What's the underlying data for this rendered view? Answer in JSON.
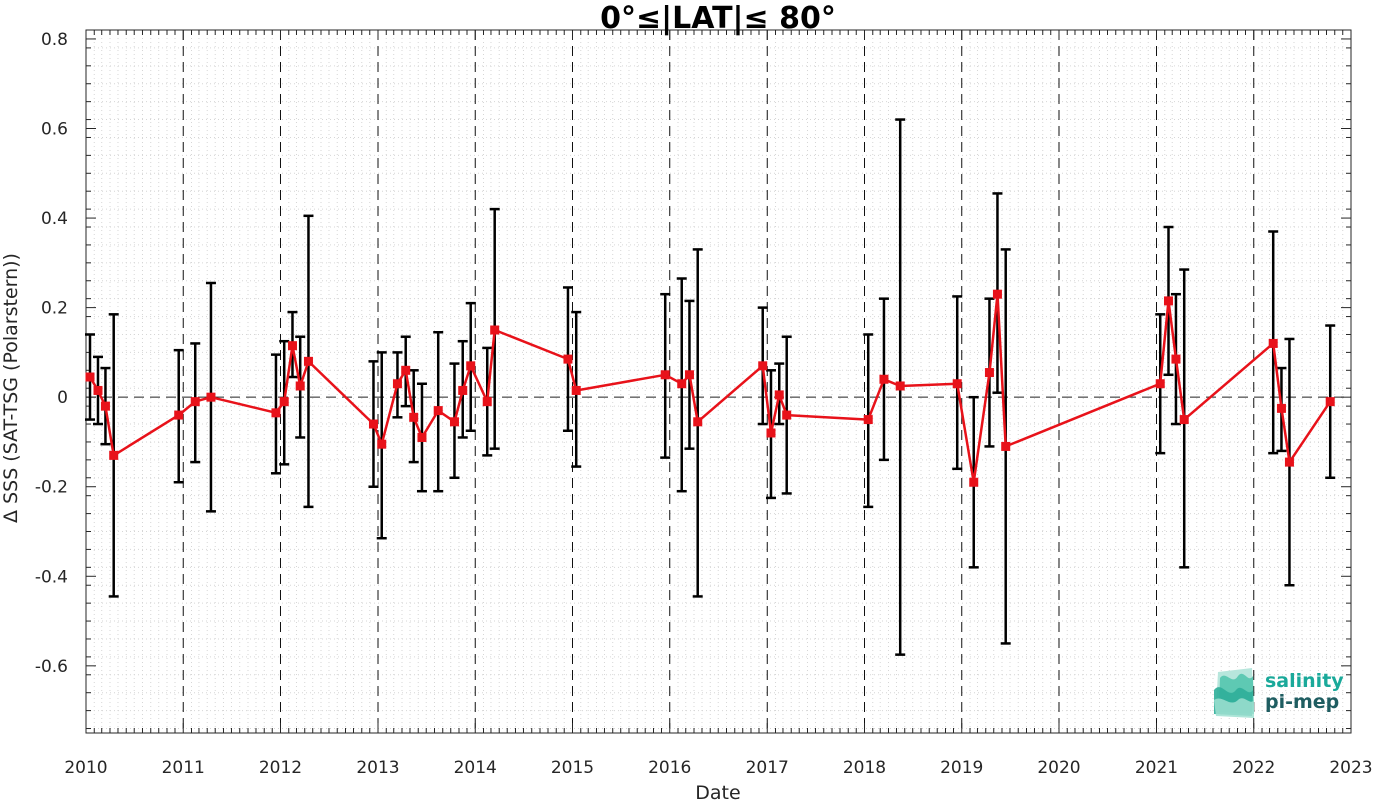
{
  "chart_data": {
    "type": "line",
    "title": "0°≤|LAT|≤ 80°",
    "xlabel": "Date",
    "ylabel": "Δ SSS (SAT-TSG (Polarstern))",
    "xlim": [
      "2010-01-01",
      "2023-01-01"
    ],
    "ylim": [
      -0.75,
      0.82
    ],
    "x_ticks": [
      "2010",
      "2011",
      "2012",
      "2013",
      "2014",
      "2015",
      "2016",
      "2017",
      "2018",
      "2019",
      "2020",
      "2021",
      "2022",
      "2023"
    ],
    "y_ticks": [
      -0.6,
      -0.4,
      -0.2,
      0,
      0.2,
      0.4,
      0.6,
      0.8
    ],
    "y_tick_labels": [
      "-0.6",
      "-0.4",
      "-0.2",
      "0",
      "0.2",
      "0.4",
      "0.6",
      "0.8"
    ],
    "grid": "minor dotted",
    "year_boundary_lines": "dashed vertical",
    "zero_line": "dashed horizontal",
    "series": [
      {
        "color": "#e8121a",
        "marker": "square",
        "errorbar_color": "#000000",
        "points": [
          {
            "x": "2010-01-16",
            "y": 0.045,
            "lo": -0.05,
            "hi": 0.14
          },
          {
            "x": "2010-02-15",
            "y": 0.015,
            "lo": -0.06,
            "hi": 0.09
          },
          {
            "x": "2010-03-15",
            "y": -0.02,
            "lo": -0.105,
            "hi": 0.065
          },
          {
            "x": "2010-04-15",
            "y": -0.13,
            "lo": -0.445,
            "hi": 0.185
          },
          {
            "x": "2010-12-15",
            "y": -0.04,
            "lo": -0.19,
            "hi": 0.105
          },
          {
            "x": "2011-02-15",
            "y": -0.01,
            "lo": -0.145,
            "hi": 0.12
          },
          {
            "x": "2011-04-15",
            "y": 0.0,
            "lo": -0.255,
            "hi": 0.255
          },
          {
            "x": "2011-12-15",
            "y": -0.035,
            "lo": -0.17,
            "hi": 0.095
          },
          {
            "x": "2012-01-15",
            "y": -0.01,
            "lo": -0.15,
            "hi": 0.125
          },
          {
            "x": "2012-02-15",
            "y": 0.115,
            "lo": 0.045,
            "hi": 0.19
          },
          {
            "x": "2012-03-15",
            "y": 0.025,
            "lo": -0.09,
            "hi": 0.135
          },
          {
            "x": "2012-04-15",
            "y": 0.08,
            "lo": -0.245,
            "hi": 0.405
          },
          {
            "x": "2012-12-15",
            "y": -0.06,
            "lo": -0.2,
            "hi": 0.08
          },
          {
            "x": "2013-01-15",
            "y": -0.105,
            "lo": -0.315,
            "hi": 0.1
          },
          {
            "x": "2013-03-15",
            "y": 0.03,
            "lo": -0.045,
            "hi": 0.1
          },
          {
            "x": "2013-04-15",
            "y": 0.06,
            "lo": -0.02,
            "hi": 0.135
          },
          {
            "x": "2013-05-15",
            "y": -0.045,
            "lo": -0.145,
            "hi": 0.06
          },
          {
            "x": "2013-06-15",
            "y": -0.09,
            "lo": -0.21,
            "hi": 0.03
          },
          {
            "x": "2013-08-15",
            "y": -0.03,
            "lo": -0.21,
            "hi": 0.145
          },
          {
            "x": "2013-10-15",
            "y": -0.055,
            "lo": -0.18,
            "hi": 0.075
          },
          {
            "x": "2013-11-15",
            "y": 0.015,
            "lo": -0.09,
            "hi": 0.125
          },
          {
            "x": "2013-12-15",
            "y": 0.07,
            "lo": -0.075,
            "hi": 0.21
          },
          {
            "x": "2014-02-15",
            "y": -0.01,
            "lo": -0.13,
            "hi": 0.11
          },
          {
            "x": "2014-03-15",
            "y": 0.15,
            "lo": -0.115,
            "hi": 0.42
          },
          {
            "x": "2014-12-15",
            "y": 0.085,
            "lo": -0.075,
            "hi": 0.245
          },
          {
            "x": "2015-01-15",
            "y": 0.015,
            "lo": -0.155,
            "hi": 0.19
          },
          {
            "x": "2015-12-15",
            "y": 0.05,
            "lo": -0.135,
            "hi": 0.23
          },
          {
            "x": "2016-02-15",
            "y": 0.03,
            "lo": -0.21,
            "hi": 0.265
          },
          {
            "x": "2016-03-15",
            "y": 0.05,
            "lo": -0.115,
            "hi": 0.215
          },
          {
            "x": "2016-04-15",
            "y": -0.055,
            "lo": -0.445,
            "hi": 0.33
          },
          {
            "x": "2016-12-15",
            "y": 0.07,
            "lo": -0.06,
            "hi": 0.2
          },
          {
            "x": "2017-01-15",
            "y": -0.08,
            "lo": -0.225,
            "hi": 0.06
          },
          {
            "x": "2017-02-15",
            "y": 0.005,
            "lo": -0.06,
            "hi": 0.075
          },
          {
            "x": "2017-03-15",
            "y": -0.04,
            "lo": -0.215,
            "hi": 0.135
          },
          {
            "x": "2018-01-15",
            "y": -0.05,
            "lo": -0.245,
            "hi": 0.14
          },
          {
            "x": "2018-03-15",
            "y": 0.04,
            "lo": -0.14,
            "hi": 0.22
          },
          {
            "x": "2018-05-15",
            "y": 0.025,
            "lo": -0.575,
            "hi": 0.62
          },
          {
            "x": "2018-12-15",
            "y": 0.03,
            "lo": -0.16,
            "hi": 0.225
          },
          {
            "x": "2019-02-15",
            "y": -0.19,
            "lo": -0.38,
            "hi": 0.0
          },
          {
            "x": "2019-04-15",
            "y": 0.055,
            "lo": -0.11,
            "hi": 0.22
          },
          {
            "x": "2019-05-15",
            "y": 0.23,
            "lo": 0.01,
            "hi": 0.455
          },
          {
            "x": "2019-06-15",
            "y": -0.11,
            "lo": -0.55,
            "hi": 0.33
          },
          {
            "x": "2021-01-15",
            "y": 0.03,
            "lo": -0.125,
            "hi": 0.185
          },
          {
            "x": "2021-02-15",
            "y": 0.215,
            "lo": 0.05,
            "hi": 0.38
          },
          {
            "x": "2021-03-15",
            "y": 0.085,
            "lo": -0.06,
            "hi": 0.23
          },
          {
            "x": "2021-04-15",
            "y": -0.05,
            "lo": -0.38,
            "hi": 0.285
          },
          {
            "x": "2022-03-15",
            "y": 0.12,
            "lo": -0.125,
            "hi": 0.37
          },
          {
            "x": "2022-04-15",
            "y": -0.025,
            "lo": -0.12,
            "hi": 0.065
          },
          {
            "x": "2022-05-15",
            "y": -0.145,
            "lo": -0.42,
            "hi": 0.13
          },
          {
            "x": "2022-10-15",
            "y": -0.01,
            "lo": -0.18,
            "hi": 0.16
          }
        ]
      }
    ]
  },
  "logo": {
    "line1": "salinity",
    "line2": "pi-mep",
    "color1": "#1aa99a",
    "color2": "#1f5d61"
  }
}
